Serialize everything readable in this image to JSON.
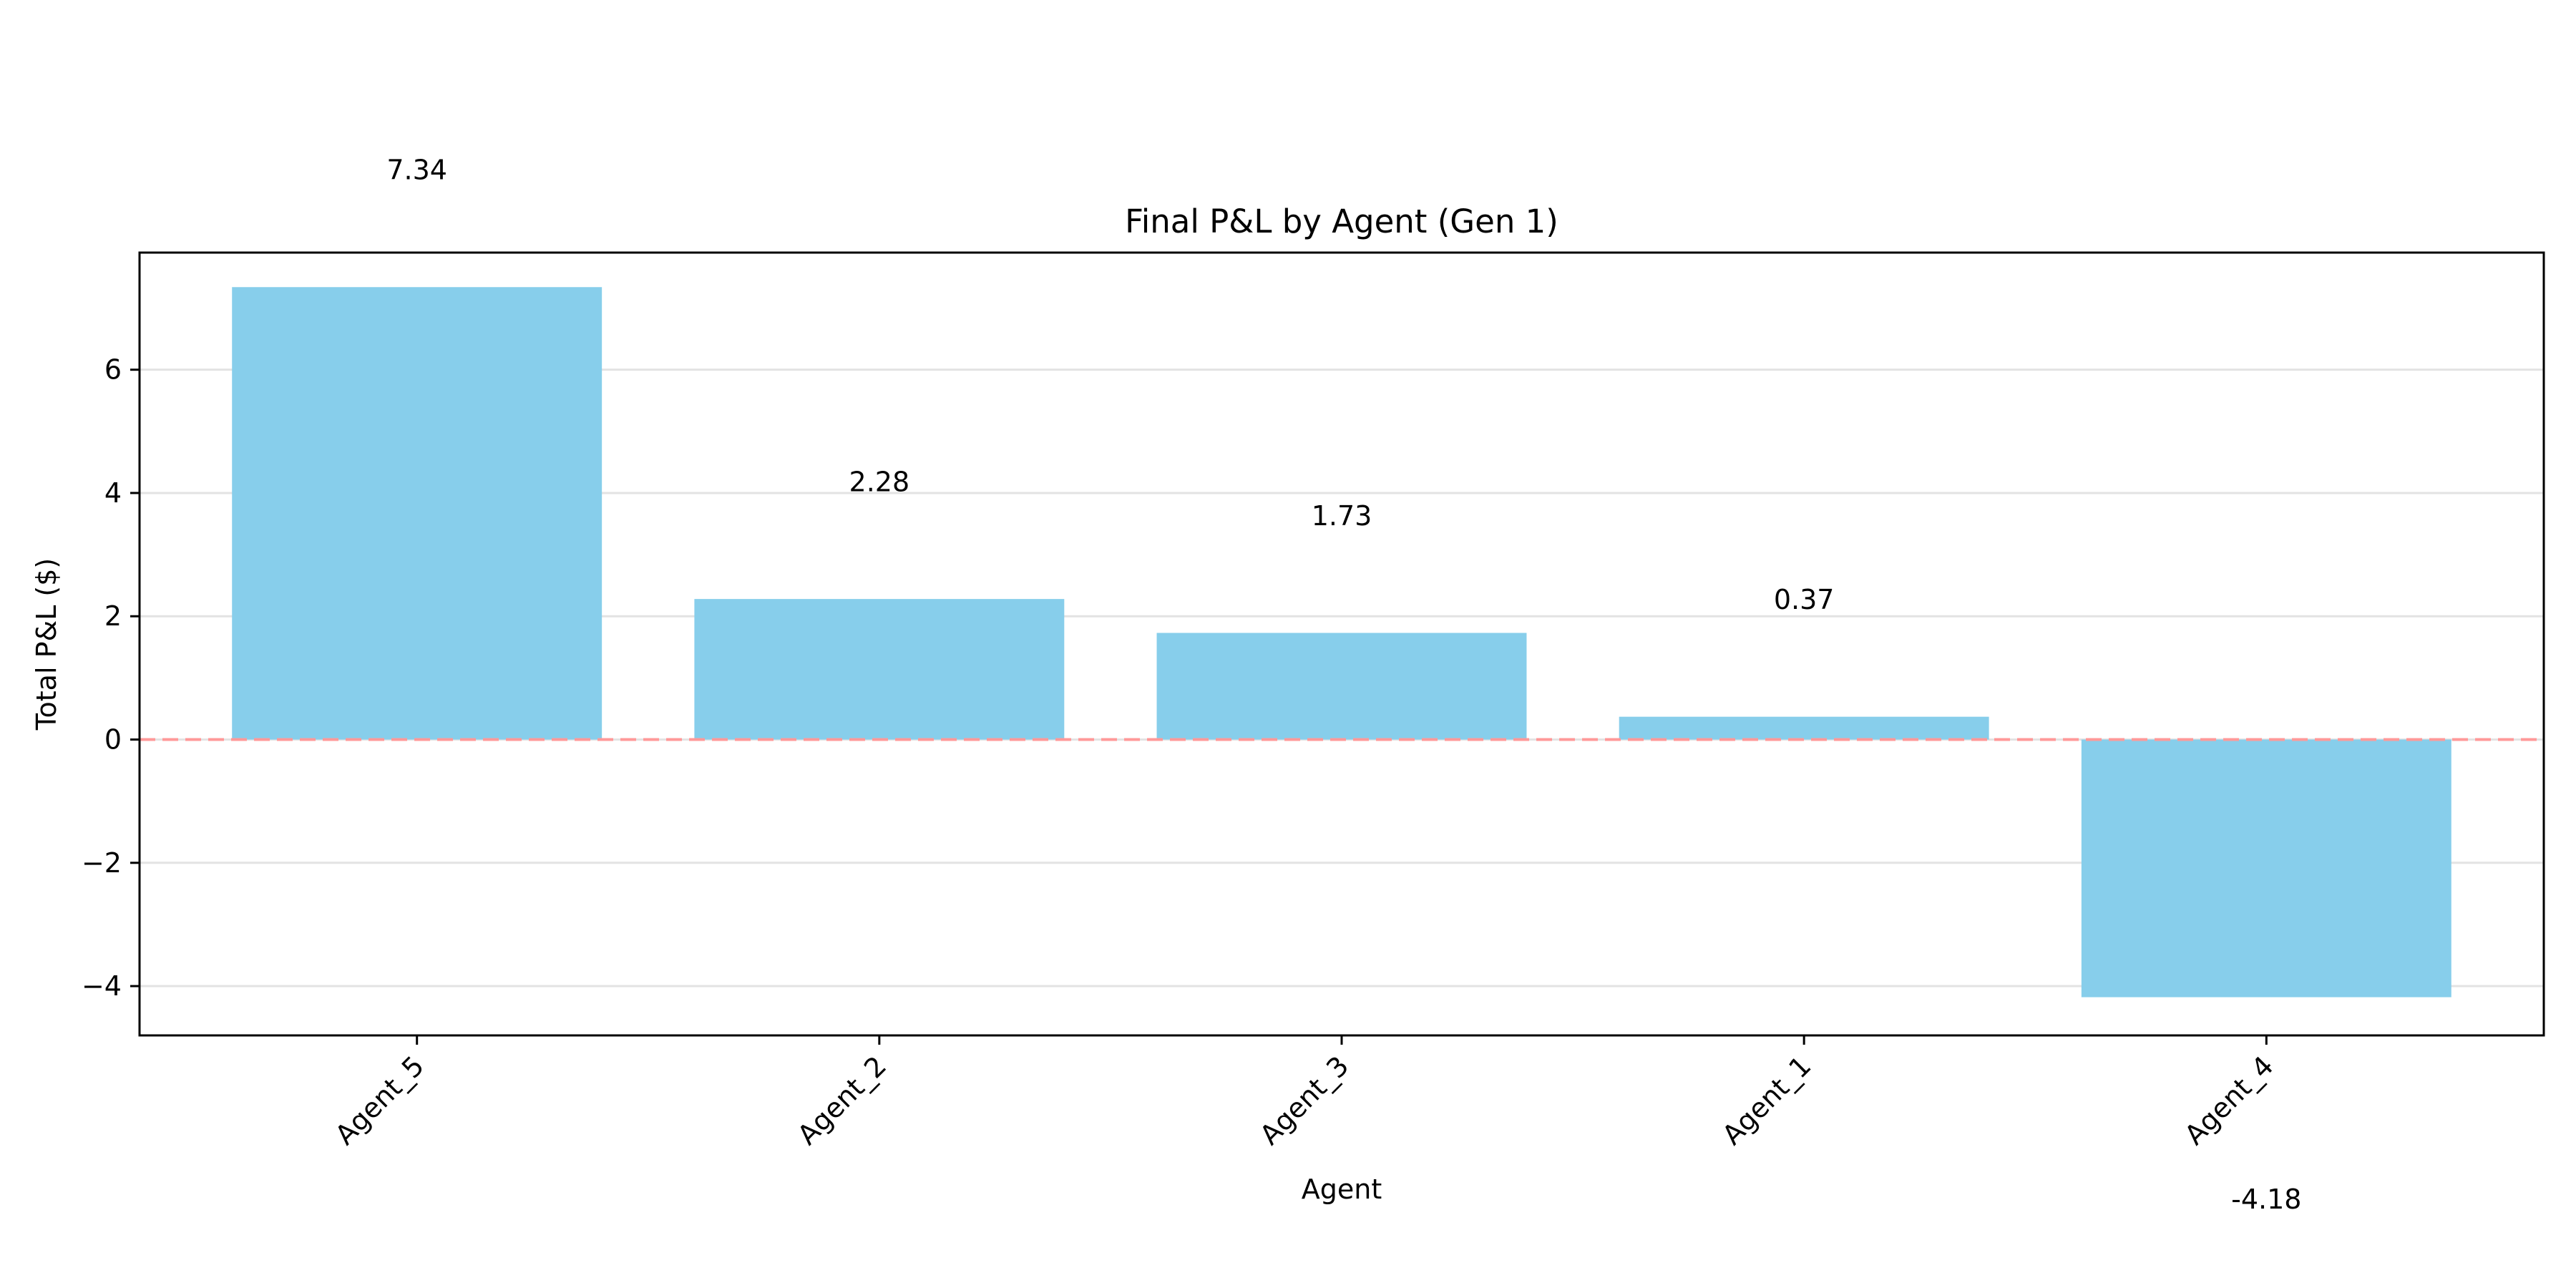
{
  "chart_data": {
    "type": "bar",
    "title": "Final P&L by Agent (Gen 1)",
    "xlabel": "Agent",
    "ylabel": "Total P&L ($)",
    "categories": [
      "Agent_5",
      "Agent_2",
      "Agent_3",
      "Agent_1",
      "Agent_4"
    ],
    "values": [
      7.34,
      2.28,
      1.73,
      0.37,
      -4.18
    ],
    "data_labels": [
      "7.34",
      "2.28",
      "1.73",
      "0.37",
      "-4.18"
    ],
    "ylim": [
      -4.8,
      7.9
    ],
    "yticks": [
      -4,
      -2,
      0,
      2,
      4,
      6
    ],
    "ytick_labels": [
      "−4",
      "−2",
      "0",
      "2",
      "4",
      "6"
    ],
    "grid": "horizontal",
    "reference_line": {
      "y": 0,
      "style": "dashed"
    },
    "colors": {
      "bar": "#87CEEB",
      "reference_line": "#FF9999",
      "grid": "#E3E3E3",
      "axes": "#000000"
    }
  }
}
